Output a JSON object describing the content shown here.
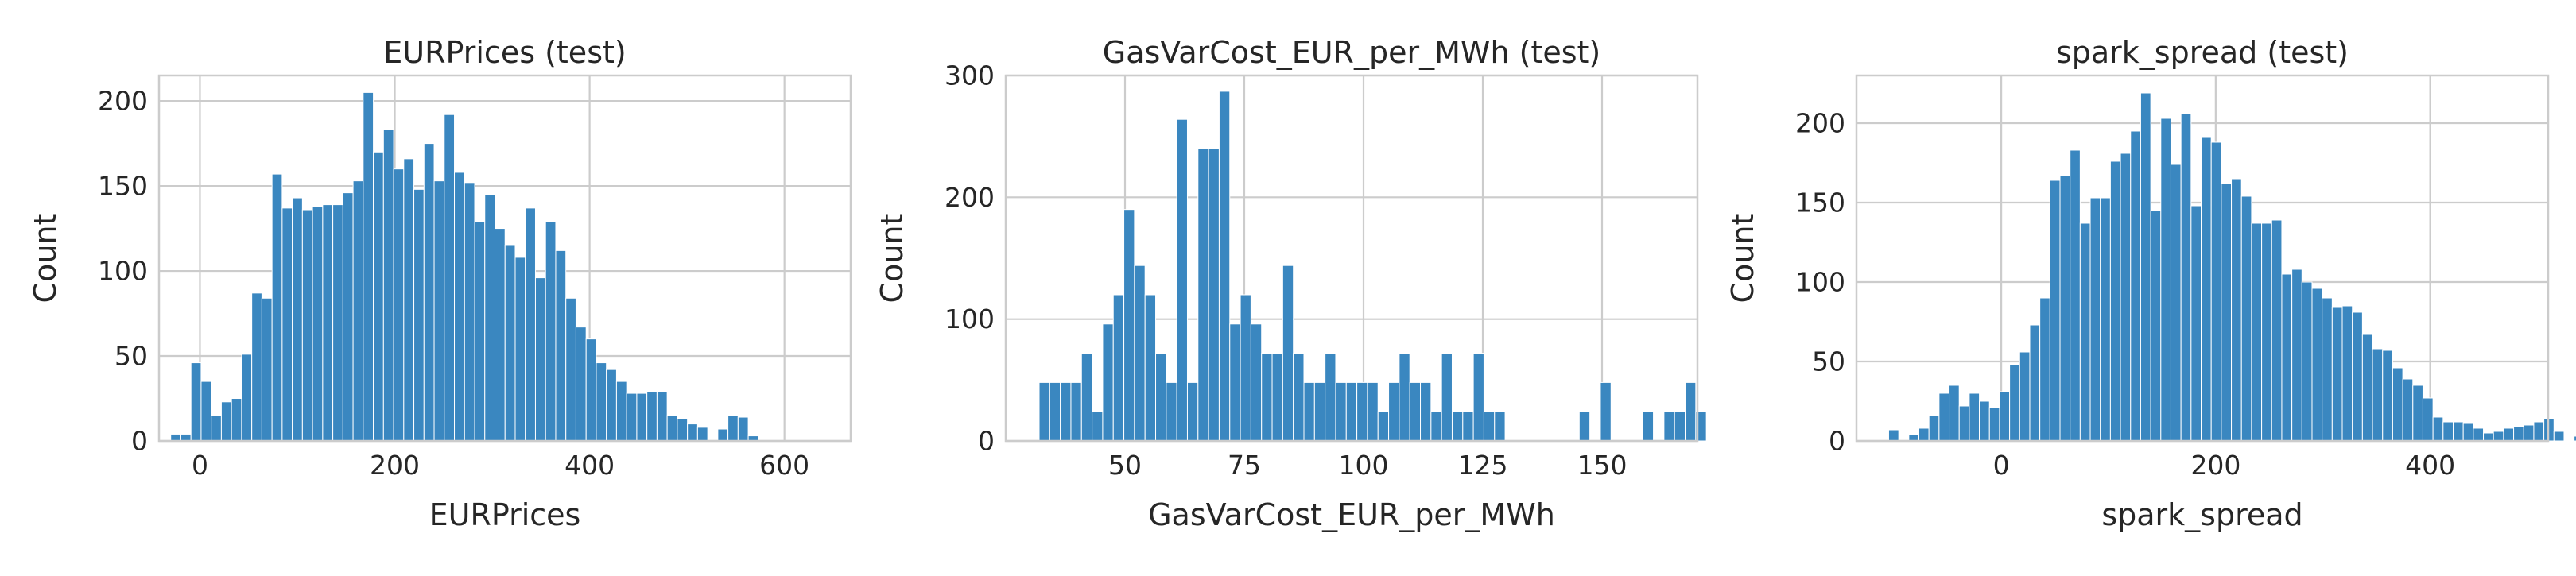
{
  "colors": {
    "bar": "#3a87c0",
    "grid": "#cccccc",
    "background": "#ffffff",
    "text": "#262626"
  },
  "chart_data": [
    {
      "type": "histogram",
      "title": "EURPrices (test)",
      "xlabel": "EURPrices",
      "ylabel": "Count",
      "xlim": [
        -42,
        668
      ],
      "ylim": [
        0,
        215
      ],
      "xticks": [
        0,
        200,
        400,
        600
      ],
      "yticks": [
        0,
        50,
        100,
        150,
        200
      ],
      "grid": true,
      "bin_start": -30,
      "bin_width": 10.4,
      "values": [
        4,
        4,
        46,
        35,
        15,
        23,
        25,
        51,
        87,
        84,
        157,
        137,
        143,
        136,
        138,
        139,
        139,
        146,
        153,
        205,
        170,
        183,
        160,
        166,
        148,
        175,
        153,
        192,
        158,
        152,
        129,
        145,
        125,
        115,
        108,
        137,
        96,
        129,
        112,
        84,
        67,
        60,
        46,
        42,
        35,
        28,
        28,
        29,
        29,
        15,
        13,
        10,
        8,
        0,
        7,
        15,
        14,
        3,
        0,
        0
      ]
    },
    {
      "type": "histogram",
      "title": "GasVarCost_EUR_per_MWh (test)",
      "xlabel": "GasVarCost_EUR_per_MWh",
      "ylabel": "Count",
      "xlim": [
        25,
        170
      ],
      "ylim": [
        0,
        300
      ],
      "xticks": [
        50,
        75,
        100,
        125,
        150
      ],
      "yticks": [
        0,
        100,
        200,
        300
      ],
      "grid": true,
      "bin_start": 32,
      "bin_width": 2.22,
      "values": [
        48,
        48,
        48,
        48,
        72,
        24,
        96,
        120,
        190,
        144,
        120,
        72,
        48,
        264,
        48,
        240,
        240,
        287,
        96,
        120,
        96,
        72,
        72,
        144,
        72,
        48,
        48,
        72,
        48,
        48,
        48,
        48,
        24,
        48,
        72,
        48,
        48,
        24,
        72,
        24,
        24,
        72,
        24,
        24,
        0,
        0,
        0,
        0,
        0,
        0,
        0,
        24,
        0,
        48,
        0,
        0,
        0,
        24,
        0,
        24,
        24,
        48,
        24
      ]
    },
    {
      "type": "histogram",
      "title": "spark_spread (test)",
      "xlabel": "spark_spread",
      "ylabel": "Count",
      "xlim": [
        -135,
        510
      ],
      "ylim": [
        0,
        230
      ],
      "xticks": [
        0,
        200,
        400
      ],
      "yticks": [
        0,
        50,
        100,
        150,
        200
      ],
      "grid": true,
      "bin_start": -105,
      "bin_width": 9.4,
      "values": [
        7,
        0,
        4,
        8,
        16,
        30,
        35,
        22,
        30,
        25,
        21,
        31,
        48,
        56,
        73,
        90,
        164,
        167,
        183,
        137,
        153,
        153,
        176,
        181,
        195,
        219,
        145,
        203,
        174,
        206,
        148,
        191,
        188,
        162,
        165,
        154,
        137,
        137,
        139,
        105,
        108,
        100,
        96,
        90,
        84,
        85,
        81,
        67,
        58,
        57,
        46,
        39,
        35,
        27,
        15,
        12,
        12,
        11,
        8,
        5,
        6,
        8,
        9,
        10,
        12,
        14,
        6,
        0,
        3,
        0,
        0
      ]
    }
  ]
}
